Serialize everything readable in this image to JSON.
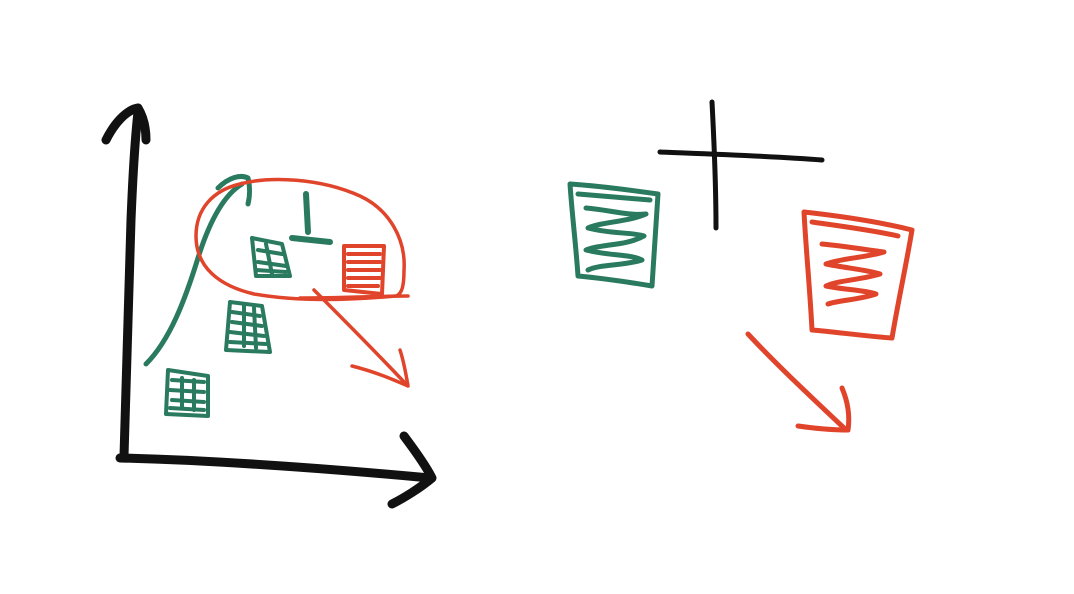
{
  "colors": {
    "background": "#ffffff",
    "black": "#111111",
    "green": "#2a7a5f",
    "red": "#e0442a"
  },
  "sketch": {
    "left_panel": {
      "elements": [
        "axis-y-arrow",
        "axis-x-arrow",
        "green-growth-curve-arrow",
        "green-hatched-box-1",
        "green-hatched-box-2",
        "green-hatched-box-3",
        "green-t-mark",
        "red-hatched-box",
        "red-highlight-lasso",
        "red-downward-arrow"
      ]
    },
    "right_panel": {
      "elements": [
        "black-plus-sign",
        "green-zigzag-box",
        "red-zigzag-box",
        "red-diagonal-arrow"
      ]
    }
  }
}
